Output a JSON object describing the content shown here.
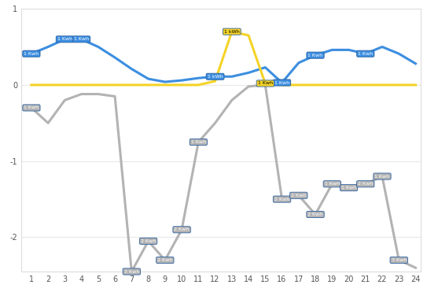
{
  "chart_data": {
    "type": "line",
    "x": [
      1,
      2,
      3,
      4,
      5,
      6,
      7,
      8,
      9,
      10,
      11,
      12,
      13,
      14,
      15,
      16,
      17,
      18,
      19,
      20,
      21,
      22,
      23,
      24
    ],
    "series": [
      {
        "color": "#3c8ee0",
        "marker": "none",
        "line_style": "solid",
        "values": [
          0.41,
          0.5,
          0.6,
          0.6,
          0.5,
          0.36,
          0.21,
          0.08,
          0.04,
          0.06,
          0.09,
          0.11,
          0.11,
          0.16,
          0.23,
          0.03,
          0.29,
          0.39,
          0.46,
          0.46,
          0.41,
          0.5,
          0.41,
          0.28
        ],
        "annotations": [
          {
            "x": 1,
            "label": "1 Kwh"
          },
          {
            "x": 3,
            "label": "1 Kwh"
          },
          {
            "x": 4,
            "label": "1 Kwh"
          },
          {
            "x": 12,
            "label": "1 kWh"
          },
          {
            "x": 16,
            "label": "1 Kwh"
          },
          {
            "x": 18,
            "label": "1 Kwh"
          },
          {
            "x": 21,
            "label": "1 Kwh"
          }
        ]
      },
      {
        "color": "#f5d327",
        "marker": "none",
        "line_style": "solid",
        "values": [
          0,
          0,
          0,
          0,
          0,
          0,
          0,
          0,
          0,
          0,
          0,
          0.05,
          0.7,
          0.65,
          0.02,
          0,
          0,
          0,
          0,
          0,
          0,
          0,
          0,
          0
        ],
        "annotations": [
          {
            "x": 13,
            "label": "1 kWh"
          },
          {
            "x": 15,
            "label": "1 Kwh"
          }
        ]
      },
      {
        "color": "#b3b3b3",
        "marker": "none",
        "line_style": "solid",
        "values": [
          -0.3,
          -0.5,
          -0.2,
          -0.12,
          -0.12,
          -0.15,
          -2.45,
          -2.05,
          -2.3,
          -1.9,
          -0.75,
          -0.5,
          -0.2,
          -0.02,
          0,
          -1.5,
          -1.45,
          -1.7,
          -1.3,
          -1.35,
          -1.3,
          -1.2,
          -2.3,
          -2.4
        ],
        "annotations": [
          {
            "x": 1,
            "label": "1 Kwh"
          },
          {
            "x": 7,
            "label": "3 Kwh"
          },
          {
            "x": 8,
            "label": "2 Kwh"
          },
          {
            "x": 9,
            "label": "2 Kwh"
          },
          {
            "x": 10,
            "label": "2 Kwh"
          },
          {
            "x": 11,
            "label": "1 Kwh"
          },
          {
            "x": 16,
            "label": "2 Kwh"
          },
          {
            "x": 17,
            "label": "2 Kwh"
          },
          {
            "x": 18,
            "label": "2 Kwh"
          },
          {
            "x": 19,
            "label": "1 Kwh"
          },
          {
            "x": 20,
            "label": "1 Kwh"
          },
          {
            "x": 21,
            "label": "2 Kwh"
          },
          {
            "x": 22,
            "label": "1 Kwh"
          },
          {
            "x": 23,
            "label": "3 Kwh"
          }
        ]
      }
    ],
    "xlim": [
      0.4,
      24.3
    ],
    "xticks": [
      1,
      2,
      3,
      4,
      5,
      6,
      7,
      8,
      9,
      10,
      11,
      12,
      13,
      14,
      15,
      16,
      17,
      18,
      19,
      20,
      21,
      22,
      23,
      24
    ],
    "ylim": [
      -2.45,
      1
    ],
    "yticks": [
      -2,
      -1,
      0,
      1
    ],
    "grid": true
  }
}
